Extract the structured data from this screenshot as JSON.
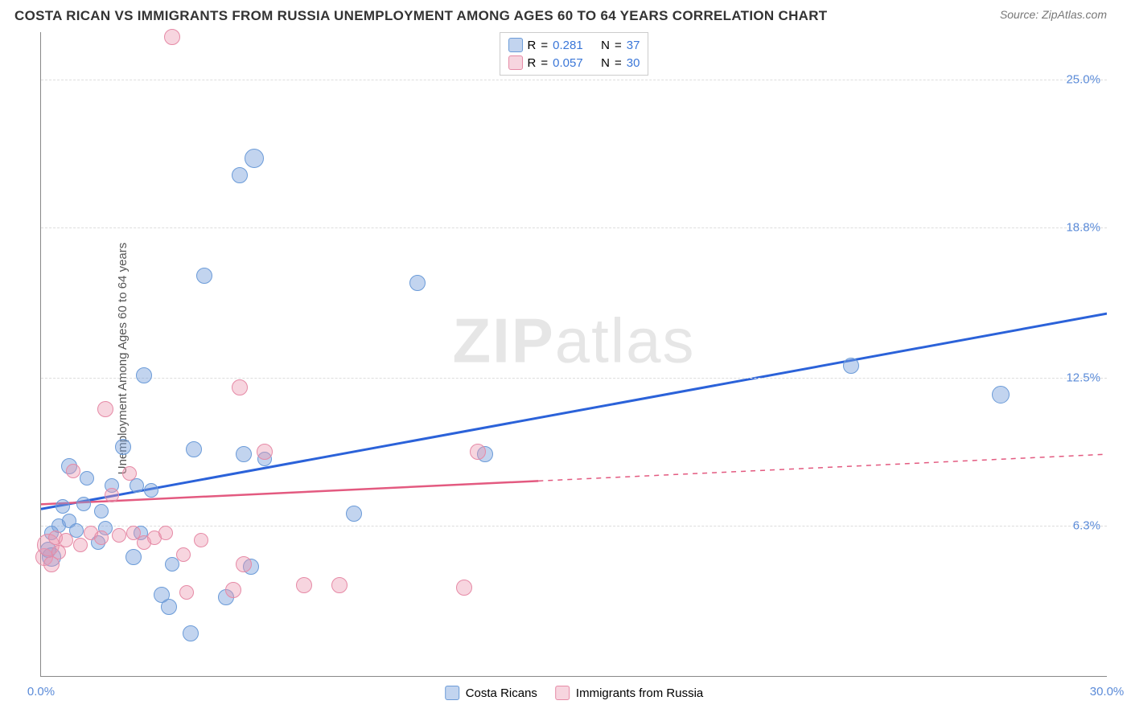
{
  "title": "COSTA RICAN VS IMMIGRANTS FROM RUSSIA UNEMPLOYMENT AMONG AGES 60 TO 64 YEARS CORRELATION CHART",
  "source": "Source: ZipAtlas.com",
  "ylabel": "Unemployment Among Ages 60 to 64 years",
  "watermark_a": "ZIP",
  "watermark_b": "atlas",
  "chart": {
    "type": "scatter",
    "xlim": [
      0,
      30
    ],
    "ylim": [
      0,
      27
    ],
    "background_color": "#ffffff",
    "grid_color": "#dddddd",
    "axis_color": "#888888",
    "tick_color": "#5b8bd8",
    "yticks": [
      {
        "v": 6.3,
        "label": "6.3%"
      },
      {
        "v": 12.5,
        "label": "12.5%"
      },
      {
        "v": 18.8,
        "label": "18.8%"
      },
      {
        "v": 25.0,
        "label": "25.0%"
      }
    ],
    "xticks": [
      {
        "v": 0.0,
        "label": "0.0%"
      },
      {
        "v": 30.0,
        "label": "30.0%"
      }
    ],
    "series": [
      {
        "name": "Costa Ricans",
        "color_fill": "rgba(120,160,220,0.45)",
        "color_stroke": "#6b9bd8",
        "line_color": "#2b62d9",
        "line_width": 3,
        "regression": {
          "x1": 0,
          "y1": 7.0,
          "x2": 30,
          "y2": 15.2,
          "solid_until_x": 30
        },
        "R": "0.281",
        "N": "37",
        "points": [
          {
            "x": 0.2,
            "y": 5.3,
            "r": 10
          },
          {
            "x": 0.3,
            "y": 5.0,
            "r": 12
          },
          {
            "x": 0.3,
            "y": 6.0,
            "r": 9
          },
          {
            "x": 0.5,
            "y": 6.3,
            "r": 9
          },
          {
            "x": 0.6,
            "y": 7.1,
            "r": 9
          },
          {
            "x": 0.8,
            "y": 6.5,
            "r": 9
          },
          {
            "x": 0.8,
            "y": 8.8,
            "r": 10
          },
          {
            "x": 1.0,
            "y": 6.1,
            "r": 9
          },
          {
            "x": 1.2,
            "y": 7.2,
            "r": 9
          },
          {
            "x": 1.3,
            "y": 8.3,
            "r": 9
          },
          {
            "x": 1.6,
            "y": 5.6,
            "r": 9
          },
          {
            "x": 1.7,
            "y": 6.9,
            "r": 9
          },
          {
            "x": 1.8,
            "y": 6.2,
            "r": 9
          },
          {
            "x": 2.0,
            "y": 8.0,
            "r": 9
          },
          {
            "x": 2.3,
            "y": 9.6,
            "r": 10
          },
          {
            "x": 2.6,
            "y": 5.0,
            "r": 10
          },
          {
            "x": 2.7,
            "y": 8.0,
            "r": 9
          },
          {
            "x": 2.8,
            "y": 6.0,
            "r": 9
          },
          {
            "x": 2.9,
            "y": 12.6,
            "r": 10
          },
          {
            "x": 3.1,
            "y": 7.8,
            "r": 9
          },
          {
            "x": 3.4,
            "y": 3.4,
            "r": 10
          },
          {
            "x": 3.6,
            "y": 2.9,
            "r": 10
          },
          {
            "x": 3.7,
            "y": 4.7,
            "r": 9
          },
          {
            "x": 4.2,
            "y": 1.8,
            "r": 10
          },
          {
            "x": 4.3,
            "y": 9.5,
            "r": 10
          },
          {
            "x": 4.6,
            "y": 16.8,
            "r": 10
          },
          {
            "x": 5.2,
            "y": 3.3,
            "r": 10
          },
          {
            "x": 5.6,
            "y": 21.0,
            "r": 10
          },
          {
            "x": 5.7,
            "y": 9.3,
            "r": 10
          },
          {
            "x": 5.9,
            "y": 4.6,
            "r": 10
          },
          {
            "x": 6.0,
            "y": 21.7,
            "r": 12
          },
          {
            "x": 6.3,
            "y": 9.1,
            "r": 9
          },
          {
            "x": 8.8,
            "y": 6.8,
            "r": 10
          },
          {
            "x": 10.6,
            "y": 16.5,
            "r": 10
          },
          {
            "x": 12.5,
            "y": 9.3,
            "r": 10
          },
          {
            "x": 22.8,
            "y": 13.0,
            "r": 10
          },
          {
            "x": 27.0,
            "y": 11.8,
            "r": 11
          }
        ]
      },
      {
        "name": "Immigrants from Russia",
        "color_fill": "rgba(235,150,175,0.40)",
        "color_stroke": "#e68aa6",
        "line_color": "#e35a80",
        "line_width": 2.5,
        "regression": {
          "x1": 0,
          "y1": 7.2,
          "x2": 30,
          "y2": 9.3,
          "solid_until_x": 14
        },
        "R": "0.057",
        "N": "30",
        "points": [
          {
            "x": 0.1,
            "y": 5.0,
            "r": 11
          },
          {
            "x": 0.2,
            "y": 5.5,
            "r": 14
          },
          {
            "x": 0.3,
            "y": 4.7,
            "r": 10
          },
          {
            "x": 0.4,
            "y": 5.8,
            "r": 9
          },
          {
            "x": 0.5,
            "y": 5.2,
            "r": 9
          },
          {
            "x": 0.7,
            "y": 5.7,
            "r": 9
          },
          {
            "x": 0.9,
            "y": 8.6,
            "r": 9
          },
          {
            "x": 1.1,
            "y": 5.5,
            "r": 9
          },
          {
            "x": 1.4,
            "y": 6.0,
            "r": 9
          },
          {
            "x": 1.7,
            "y": 5.8,
            "r": 9
          },
          {
            "x": 1.8,
            "y": 11.2,
            "r": 10
          },
          {
            "x": 2.0,
            "y": 7.6,
            "r": 9
          },
          {
            "x": 2.2,
            "y": 5.9,
            "r": 9
          },
          {
            "x": 2.5,
            "y": 8.5,
            "r": 9
          },
          {
            "x": 2.6,
            "y": 6.0,
            "r": 9
          },
          {
            "x": 2.9,
            "y": 5.6,
            "r": 9
          },
          {
            "x": 3.2,
            "y": 5.8,
            "r": 9
          },
          {
            "x": 3.5,
            "y": 6.0,
            "r": 9
          },
          {
            "x": 3.7,
            "y": 26.8,
            "r": 10
          },
          {
            "x": 4.0,
            "y": 5.1,
            "r": 9
          },
          {
            "x": 4.1,
            "y": 3.5,
            "r": 9
          },
          {
            "x": 4.5,
            "y": 5.7,
            "r": 9
          },
          {
            "x": 5.4,
            "y": 3.6,
            "r": 10
          },
          {
            "x": 5.6,
            "y": 12.1,
            "r": 10
          },
          {
            "x": 5.7,
            "y": 4.7,
            "r": 10
          },
          {
            "x": 6.3,
            "y": 9.4,
            "r": 10
          },
          {
            "x": 7.4,
            "y": 3.8,
            "r": 10
          },
          {
            "x": 8.4,
            "y": 3.8,
            "r": 10
          },
          {
            "x": 11.9,
            "y": 3.7,
            "r": 10
          },
          {
            "x": 12.3,
            "y": 9.4,
            "r": 10
          }
        ]
      }
    ],
    "legend_top_labels": {
      "r": "R",
      "eq": "=",
      "n": "N"
    },
    "bottom_legend_swatches": [
      {
        "fill": "rgba(120,160,220,0.45)",
        "stroke": "#6b9bd8"
      },
      {
        "fill": "rgba(235,150,175,0.40)",
        "stroke": "#e68aa6"
      }
    ]
  }
}
